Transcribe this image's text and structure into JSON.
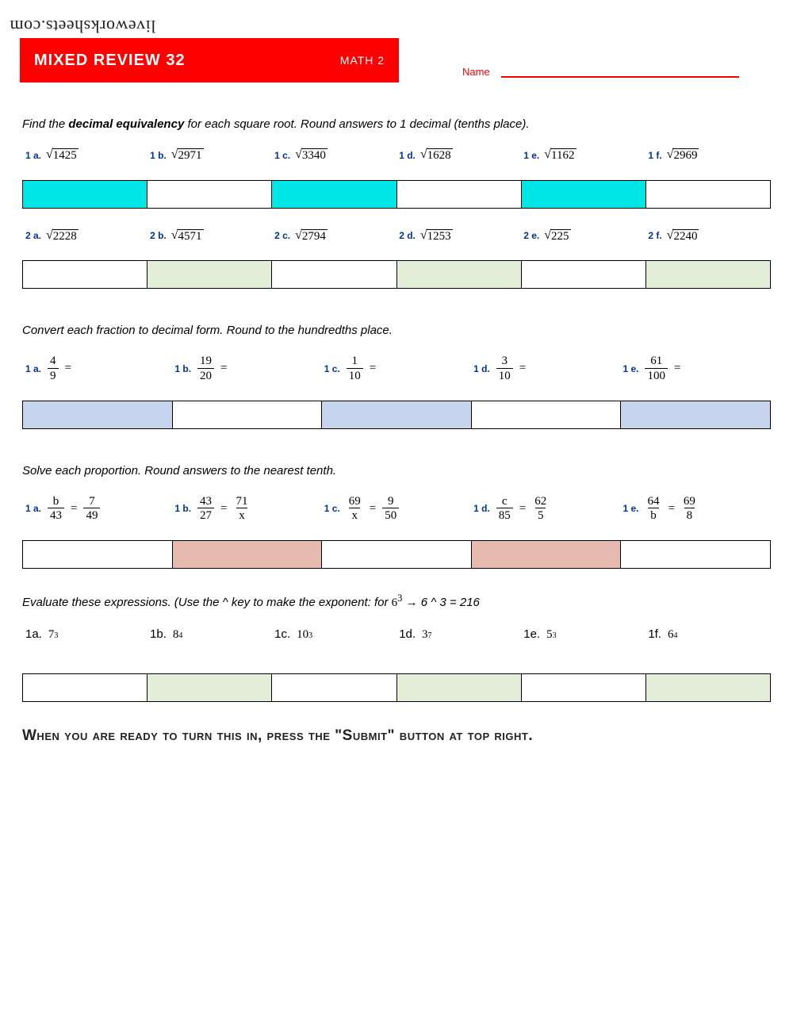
{
  "watermark": "liveworksheets.com",
  "header": {
    "title": "MIXED REVIEW 32",
    "subject": "MATH 2",
    "name_label": "Name"
  },
  "section1": {
    "instruction_pre": "Find the ",
    "instruction_bold": "decimal equivalency",
    "instruction_post": " for each square root. Round answers to 1 decimal (tenths place).",
    "row1": {
      "labels": [
        "1 a.",
        "1 b.",
        "1 c.",
        "1 d.",
        "1 e.",
        "1 f."
      ],
      "values": [
        "1425",
        "2971",
        "3340",
        "1628",
        "1162",
        "2969"
      ],
      "cell_colors": [
        "c-cyan",
        "c-white",
        "c-cyan",
        "c-white",
        "c-cyan",
        "c-white"
      ]
    },
    "row2": {
      "labels": [
        "2 a.",
        "2 b.",
        "2 c.",
        "2 d.",
        "2 e.",
        "2 f."
      ],
      "values": [
        "2228",
        "4571",
        "2794",
        "1253",
        "225",
        "2240"
      ],
      "cell_colors": [
        "c-white",
        "c-green",
        "c-white",
        "c-green",
        "c-white",
        "c-green"
      ]
    }
  },
  "section2": {
    "instruction": "Convert each fraction to decimal form. Round to the hundredths place.",
    "labels": [
      "1 a.",
      "1 b.",
      "1 c.",
      "1 d.",
      "1 e."
    ],
    "nums": [
      "4",
      "19",
      "1",
      "3",
      "61"
    ],
    "dens": [
      "9",
      "20",
      "10",
      "10",
      "100"
    ],
    "cell_colors": [
      "c-blue",
      "c-white",
      "c-blue",
      "c-white",
      "c-blue"
    ]
  },
  "section3": {
    "instruction": "Solve each proportion. Round answers to the nearest tenth.",
    "labels": [
      "1 a.",
      "1 b.",
      "1 c.",
      "1 d.",
      "1 e."
    ],
    "p": [
      {
        "n1": "b",
        "d1": "43",
        "n2": "7",
        "d2": "49"
      },
      {
        "n1": "43",
        "d1": "27",
        "n2": "71",
        "d2": "x"
      },
      {
        "n1": "69",
        "d1": "x",
        "n2": "9",
        "d2": "50"
      },
      {
        "n1": "c",
        "d1": "85",
        "n2": "62",
        "d2": "5"
      },
      {
        "n1": "64",
        "d1": "b",
        "n2": "69",
        "d2": "8"
      }
    ],
    "cell_colors": [
      "c-white",
      "c-pink",
      "c-white",
      "c-pink",
      "c-white"
    ]
  },
  "section4": {
    "instruction_pre": "Evaluate these expressions. (Use the ^ key to make the exponent:  for  ",
    "instruction_expr_base": "6",
    "instruction_expr_sup": "3",
    "instruction_post": " → 6 ^ 3 = 216",
    "labels": [
      "1a.",
      "1b.",
      "1c.",
      "1d.",
      "1e.",
      "1f."
    ],
    "bases": [
      "7",
      "8",
      "10",
      "3",
      "5",
      "6"
    ],
    "exps": [
      "3",
      "4",
      "3",
      "7",
      "3",
      "4"
    ],
    "cell_colors": [
      "c-white",
      "c-green",
      "c-white",
      "c-green",
      "c-white",
      "c-green"
    ]
  },
  "footer": "When you are ready to turn this in, press the \"Submit\" button at top right."
}
